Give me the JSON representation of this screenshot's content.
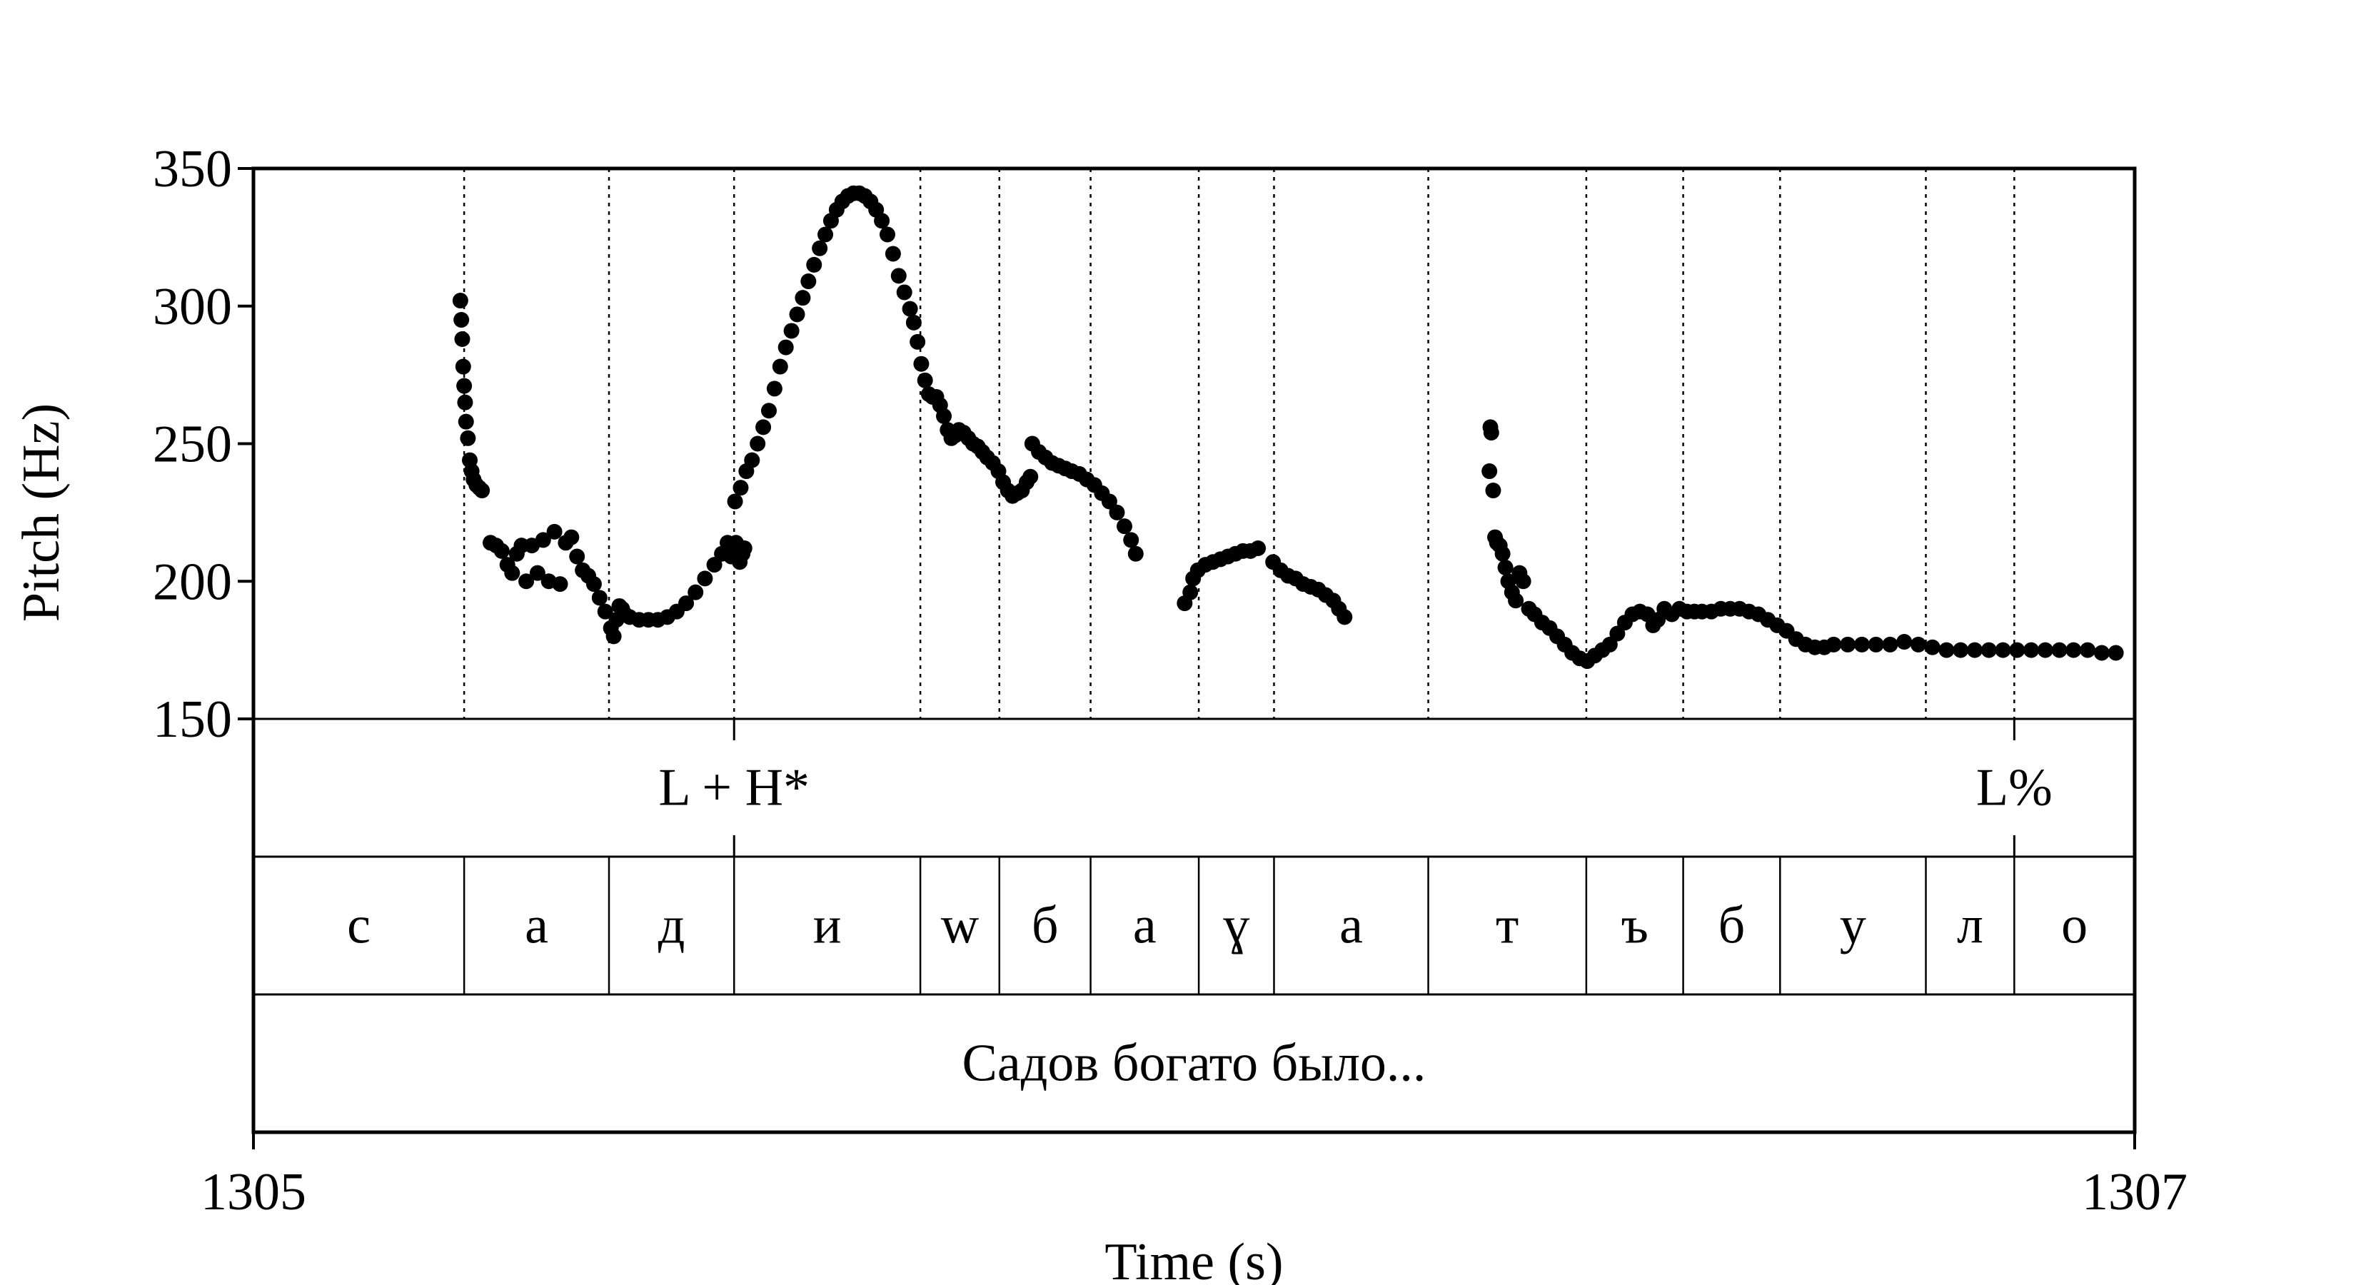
{
  "chart_data": {
    "type": "scatter",
    "title": "",
    "xlabel": "Time (s)",
    "ylabel": "Pitch (Hz)",
    "xlim": [
      1305,
      1307
    ],
    "ylim": [
      150,
      350
    ],
    "x_ticks": [
      1305,
      1307
    ],
    "y_ticks": [
      150,
      200,
      250,
      300,
      350
    ],
    "grid": false,
    "legend": "none",
    "marker_color": "#000000",
    "series": [
      {
        "points": [
          [
            1305.22,
            302
          ],
          [
            1305.221,
            295
          ],
          [
            1305.222,
            288
          ],
          [
            1305.223,
            278
          ],
          [
            1305.224,
            271
          ],
          [
            1305.225,
            265
          ],
          [
            1305.226,
            258
          ],
          [
            1305.228,
            252
          ],
          [
            1305.23,
            244
          ],
          [
            1305.232,
            240
          ],
          [
            1305.234,
            237
          ],
          [
            1305.237,
            235
          ],
          [
            1305.24,
            234
          ],
          [
            1305.243,
            233
          ],
          [
            1305.252,
            214
          ],
          [
            1305.258,
            213
          ],
          [
            1305.264,
            211
          ],
          [
            1305.27,
            206
          ],
          [
            1305.275,
            203
          ],
          [
            1305.28,
            210
          ],
          [
            1305.285,
            213
          ],
          [
            1305.29,
            200
          ],
          [
            1305.296,
            213
          ],
          [
            1305.302,
            203
          ],
          [
            1305.308,
            215
          ],
          [
            1305.314,
            200
          ],
          [
            1305.32,
            218
          ],
          [
            1305.326,
            199
          ],
          [
            1305.332,
            214
          ],
          [
            1305.338,
            216
          ],
          [
            1305.344,
            209
          ],
          [
            1305.35,
            204
          ],
          [
            1305.356,
            202
          ],
          [
            1305.362,
            199
          ],
          [
            1305.368,
            194
          ],
          [
            1305.374,
            189
          ],
          [
            1305.38,
            183
          ],
          [
            1305.383,
            180
          ],
          [
            1305.386,
            186
          ],
          [
            1305.389,
            191
          ],
          [
            1305.392,
            190
          ],
          [
            1305.395,
            188
          ],
          [
            1305.4,
            187
          ],
          [
            1305.41,
            186
          ],
          [
            1305.42,
            186
          ],
          [
            1305.43,
            186
          ],
          [
            1305.44,
            187
          ],
          [
            1305.45,
            189
          ],
          [
            1305.46,
            192
          ],
          [
            1305.47,
            196
          ],
          [
            1305.48,
            201
          ],
          [
            1305.49,
            206
          ],
          [
            1305.498,
            210
          ],
          [
            1305.504,
            214
          ],
          [
            1305.508,
            209
          ],
          [
            1305.513,
            214
          ],
          [
            1305.517,
            207
          ],
          [
            1305.52,
            210
          ],
          [
            1305.522,
            212
          ],
          [
            1305.512,
            229
          ],
          [
            1305.518,
            234
          ],
          [
            1305.524,
            240
          ],
          [
            1305.53,
            244
          ],
          [
            1305.536,
            250
          ],
          [
            1305.542,
            256
          ],
          [
            1305.548,
            262
          ],
          [
            1305.554,
            270
          ],
          [
            1305.56,
            278
          ],
          [
            1305.566,
            285
          ],
          [
            1305.572,
            291
          ],
          [
            1305.578,
            297
          ],
          [
            1305.584,
            303
          ],
          [
            1305.59,
            309
          ],
          [
            1305.596,
            315
          ],
          [
            1305.602,
            321
          ],
          [
            1305.608,
            326
          ],
          [
            1305.614,
            331
          ],
          [
            1305.62,
            335
          ],
          [
            1305.626,
            338
          ],
          [
            1305.632,
            340
          ],
          [
            1305.638,
            341
          ],
          [
            1305.644,
            341
          ],
          [
            1305.65,
            340
          ],
          [
            1305.656,
            338
          ],
          [
            1305.662,
            335
          ],
          [
            1305.668,
            331
          ],
          [
            1305.674,
            326
          ],
          [
            1305.68,
            319
          ],
          [
            1305.686,
            311
          ],
          [
            1305.692,
            305
          ],
          [
            1305.698,
            299
          ],
          [
            1305.702,
            294
          ],
          [
            1305.706,
            287
          ],
          [
            1305.71,
            279
          ],
          [
            1305.714,
            273
          ],
          [
            1305.718,
            268
          ],
          [
            1305.722,
            267
          ],
          [
            1305.726,
            267
          ],
          [
            1305.73,
            264
          ],
          [
            1305.734,
            260
          ],
          [
            1305.738,
            255
          ],
          [
            1305.742,
            252
          ],
          [
            1305.746,
            253
          ],
          [
            1305.75,
            255
          ],
          [
            1305.755,
            254
          ],
          [
            1305.76,
            252
          ],
          [
            1305.765,
            250
          ],
          [
            1305.77,
            249
          ],
          [
            1305.775,
            247
          ],
          [
            1305.78,
            245
          ],
          [
            1305.786,
            243
          ],
          [
            1305.792,
            240
          ],
          [
            1305.797,
            236
          ],
          [
            1305.802,
            233
          ],
          [
            1305.807,
            231
          ],
          [
            1305.812,
            232
          ],
          [
            1305.817,
            233
          ],
          [
            1305.822,
            236
          ],
          [
            1305.826,
            238
          ],
          [
            1305.828,
            250
          ],
          [
            1305.835,
            247
          ],
          [
            1305.842,
            245
          ],
          [
            1305.849,
            243
          ],
          [
            1305.856,
            242
          ],
          [
            1305.863,
            241
          ],
          [
            1305.87,
            240
          ],
          [
            1305.878,
            239
          ],
          [
            1305.886,
            237
          ],
          [
            1305.894,
            235
          ],
          [
            1305.902,
            232
          ],
          [
            1305.91,
            229
          ],
          [
            1305.918,
            225
          ],
          [
            1305.926,
            220
          ],
          [
            1305.933,
            215
          ],
          [
            1305.938,
            210
          ],
          [
            1305.99,
            192
          ],
          [
            1305.996,
            196
          ],
          [
            1305.999,
            201
          ],
          [
            1306.004,
            204
          ],
          [
            1306.012,
            206
          ],
          [
            1306.02,
            207
          ],
          [
            1306.028,
            208
          ],
          [
            1306.036,
            209
          ],
          [
            1306.044,
            210
          ],
          [
            1306.052,
            211
          ],
          [
            1306.06,
            211
          ],
          [
            1306.068,
            212
          ],
          [
            1306.084,
            207
          ],
          [
            1306.092,
            204
          ],
          [
            1306.1,
            202
          ],
          [
            1306.108,
            201
          ],
          [
            1306.116,
            199
          ],
          [
            1306.124,
            198
          ],
          [
            1306.132,
            197
          ],
          [
            1306.14,
            195
          ],
          [
            1306.148,
            193
          ],
          [
            1306.154,
            190
          ],
          [
            1306.16,
            187
          ],
          [
            1306.315,
            256
          ],
          [
            1306.316,
            254
          ],
          [
            1306.314,
            240
          ],
          [
            1306.318,
            233
          ],
          [
            1306.32,
            216
          ],
          [
            1306.322,
            214
          ],
          [
            1306.325,
            213
          ],
          [
            1306.328,
            210
          ],
          [
            1306.331,
            205
          ],
          [
            1306.334,
            200
          ],
          [
            1306.338,
            196
          ],
          [
            1306.342,
            193
          ],
          [
            1306.346,
            203
          ],
          [
            1306.35,
            200
          ],
          [
            1306.356,
            190
          ],
          [
            1306.362,
            188
          ],
          [
            1306.37,
            185
          ],
          [
            1306.378,
            183
          ],
          [
            1306.386,
            180
          ],
          [
            1306.394,
            177
          ],
          [
            1306.402,
            174
          ],
          [
            1306.41,
            172
          ],
          [
            1306.418,
            171
          ],
          [
            1306.426,
            173
          ],
          [
            1306.434,
            175
          ],
          [
            1306.442,
            177
          ],
          [
            1306.45,
            181
          ],
          [
            1306.458,
            185
          ],
          [
            1306.466,
            188
          ],
          [
            1306.474,
            189
          ],
          [
            1306.482,
            188
          ],
          [
            1306.488,
            184
          ],
          [
            1306.493,
            186
          ],
          [
            1306.5,
            190
          ],
          [
            1306.508,
            188
          ],
          [
            1306.516,
            190
          ],
          [
            1306.524,
            189
          ],
          [
            1306.532,
            189
          ],
          [
            1306.54,
            189
          ],
          [
            1306.55,
            189
          ],
          [
            1306.56,
            190
          ],
          [
            1306.57,
            190
          ],
          [
            1306.58,
            190
          ],
          [
            1306.59,
            189
          ],
          [
            1306.6,
            188
          ],
          [
            1306.61,
            186
          ],
          [
            1306.62,
            184
          ],
          [
            1306.63,
            182
          ],
          [
            1306.64,
            179
          ],
          [
            1306.65,
            177
          ],
          [
            1306.66,
            176
          ],
          [
            1306.67,
            176
          ],
          [
            1306.68,
            177
          ],
          [
            1306.695,
            177
          ],
          [
            1306.71,
            177
          ],
          [
            1306.725,
            177
          ],
          [
            1306.74,
            177
          ],
          [
            1306.755,
            178
          ],
          [
            1306.77,
            177
          ],
          [
            1306.785,
            176
          ],
          [
            1306.8,
            175
          ],
          [
            1306.815,
            175
          ],
          [
            1306.83,
            175
          ],
          [
            1306.845,
            175
          ],
          [
            1306.86,
            175
          ],
          [
            1306.875,
            175
          ],
          [
            1306.89,
            175
          ],
          [
            1306.905,
            175
          ],
          [
            1306.92,
            175
          ],
          [
            1306.935,
            175
          ],
          [
            1306.95,
            175
          ],
          [
            1306.965,
            174
          ],
          [
            1306.98,
            174
          ]
        ]
      }
    ],
    "boundaries": [
      1305.224,
      1305.378,
      1305.511,
      1305.709,
      1305.793,
      1305.89,
      1306.005,
      1306.085,
      1306.249,
      1306.417,
      1306.52,
      1306.623,
      1306.778,
      1306.872
    ]
  },
  "tiers": {
    "tones": [
      {
        "label": "L + H*",
        "time": 1305.511
      },
      {
        "label": "L%",
        "time": 1306.872
      }
    ],
    "segments": [
      {
        "label": "с",
        "start": 1305.0,
        "end": 1305.224
      },
      {
        "label": "а",
        "start": 1305.224,
        "end": 1305.378
      },
      {
        "label": "д",
        "start": 1305.378,
        "end": 1305.511
      },
      {
        "label": "и",
        "start": 1305.511,
        "end": 1305.709
      },
      {
        "label": "w",
        "start": 1305.709,
        "end": 1305.793
      },
      {
        "label": "б",
        "start": 1305.793,
        "end": 1305.89
      },
      {
        "label": "а",
        "start": 1305.89,
        "end": 1306.005
      },
      {
        "label": "ɣ",
        "start": 1306.005,
        "end": 1306.085
      },
      {
        "label": "а",
        "start": 1306.085,
        "end": 1306.249
      },
      {
        "label": "т",
        "start": 1306.249,
        "end": 1306.417
      },
      {
        "label": "ъ",
        "start": 1306.417,
        "end": 1306.52
      },
      {
        "label": "б",
        "start": 1306.52,
        "end": 1306.623
      },
      {
        "label": "у",
        "start": 1306.623,
        "end": 1306.778
      },
      {
        "label": "л",
        "start": 1306.778,
        "end": 1306.872
      },
      {
        "label": "о",
        "start": 1306.872,
        "end": 1307.0
      }
    ],
    "sentence": "Садов богато было..."
  }
}
